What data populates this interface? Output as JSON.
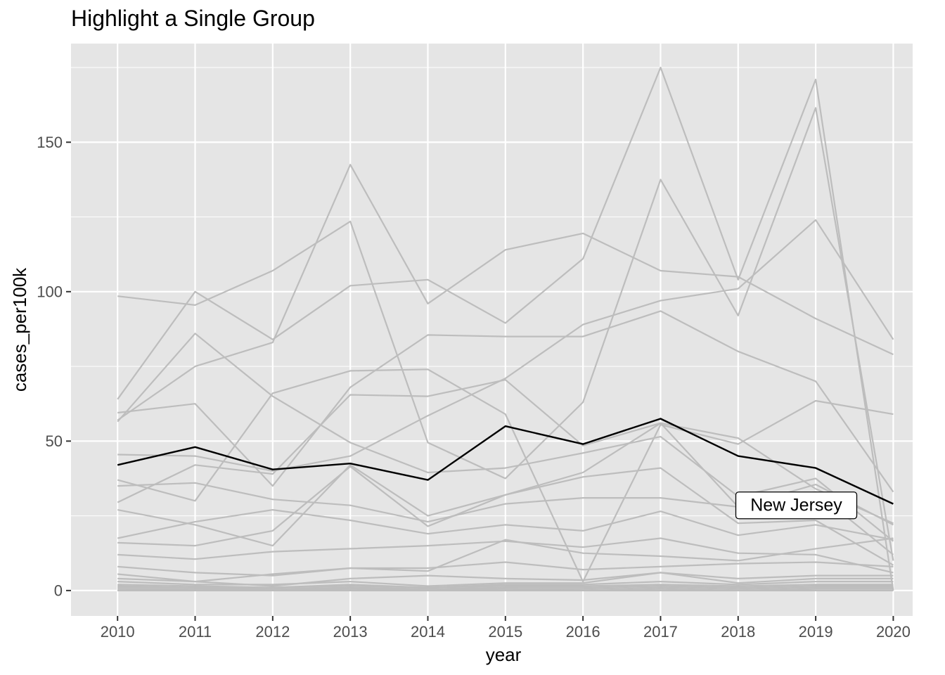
{
  "chart_data": {
    "type": "line",
    "title": "Highlight a Single Group",
    "xlabel": "year",
    "ylabel": "cases_per100k",
    "x": [
      2010,
      2011,
      2012,
      2013,
      2014,
      2015,
      2016,
      2017,
      2018,
      2019,
      2020
    ],
    "x_ticks": [
      "2010",
      "2011",
      "2012",
      "2013",
      "2014",
      "2015",
      "2016",
      "2017",
      "2018",
      "2019",
      "2020"
    ],
    "y_ticks": [
      0,
      50,
      100,
      150
    ],
    "xlim": [
      2009.4,
      2020.25
    ],
    "ylim": [
      -8.5,
      183
    ],
    "grid": true,
    "legend": "none",
    "colors": {
      "panel": "#e5e5e5",
      "grid": "#ffffff",
      "background_series": "#bdbdbd",
      "highlight_series": "#000000"
    },
    "highlight": {
      "name": "New Jersey",
      "values": [
        42,
        48,
        40.5,
        42.5,
        37,
        55,
        49,
        57.5,
        45,
        41,
        29
      ]
    },
    "annotation": {
      "label": "New Jersey",
      "x": 2018.75,
      "y": 28.5
    },
    "series": [
      {
        "values": [
          98.5,
          95.5,
          107,
          123.5,
          49.5,
          37.5,
          63,
          137.5,
          92,
          161.5,
          10
        ]
      },
      {
        "values": [
          64,
          100,
          84,
          102,
          104,
          89.5,
          111,
          175,
          104,
          171,
          0
        ]
      },
      {
        "values": [
          56.5,
          86,
          65,
          49.5,
          39.5,
          41,
          46,
          51.5,
          31.5,
          37.5,
          16.5
        ]
      },
      {
        "values": [
          57,
          75,
          83,
          142.5,
          96,
          114,
          119.5,
          107,
          105,
          91,
          79
        ]
      },
      {
        "values": [
          59.5,
          62.5,
          35,
          68,
          85.5,
          85,
          85,
          93.5,
          80,
          70,
          33
        ]
      },
      {
        "values": [
          45.5,
          45,
          40,
          45,
          58.5,
          71,
          89,
          97,
          101,
          124,
          84
        ]
      },
      {
        "values": [
          29.5,
          42,
          39,
          65.5,
          65,
          70.5,
          48.5,
          56,
          51,
          34,
          22.5
        ]
      },
      {
        "values": [
          37,
          30,
          66,
          73.5,
          74,
          59,
          3,
          55.5,
          49,
          63.5,
          59
        ]
      },
      {
        "values": [
          35,
          36,
          30.5,
          28.5,
          23,
          29,
          31,
          31,
          28,
          35.5,
          22
        ]
      },
      {
        "values": [
          27,
          22,
          15,
          42,
          25,
          32,
          39.5,
          56,
          28,
          33,
          12
        ]
      },
      {
        "values": [
          17.5,
          23,
          27,
          23.5,
          19,
          22,
          20,
          26.5,
          18.5,
          22,
          17
        ]
      },
      {
        "values": [
          16,
          15,
          20,
          41.5,
          21.5,
          32,
          38,
          41,
          22.5,
          23.5,
          8.5
        ]
      },
      {
        "values": [
          12,
          10.5,
          13,
          14,
          15,
          16.5,
          14.5,
          17.5,
          12.5,
          12,
          6
        ]
      },
      {
        "values": [
          8,
          6,
          5,
          7.5,
          6.5,
          17,
          12.5,
          11.5,
          10,
          14,
          17.5
        ]
      },
      {
        "values": [
          5.5,
          3,
          5.5,
          7.5,
          7.5,
          9.5,
          7,
          8,
          9,
          9.5,
          8
        ]
      },
      {
        "values": [
          4,
          3,
          1.5,
          4,
          5,
          4,
          3.5,
          6,
          4,
          5,
          5
        ]
      },
      {
        "values": [
          3,
          2,
          2,
          3,
          1.5,
          2.5,
          2.5,
          6,
          2.5,
          4,
          4
        ]
      },
      {
        "values": [
          2,
          1.5,
          1,
          2,
          1,
          2,
          2,
          3,
          2,
          3,
          3
        ]
      },
      {
        "values": [
          1.5,
          1,
          1,
          1.5,
          1,
          1.5,
          1.5,
          2,
          1.5,
          2,
          2
        ]
      },
      {
        "values": [
          1,
          1,
          0.5,
          1,
          0.5,
          1,
          1,
          1.5,
          1,
          1.5,
          1.5
        ]
      },
      {
        "values": [
          0.5,
          0.5,
          0.5,
          0.5,
          0.5,
          0.5,
          0.5,
          1,
          0.5,
          1,
          1
        ]
      },
      {
        "values": [
          0,
          0.5,
          0,
          0.5,
          0,
          0.5,
          0,
          0.5,
          0,
          0.5,
          0.5
        ]
      },
      {
        "values": [
          0,
          0,
          0,
          0,
          0,
          0,
          0,
          0,
          0,
          0,
          0
        ]
      }
    ]
  }
}
